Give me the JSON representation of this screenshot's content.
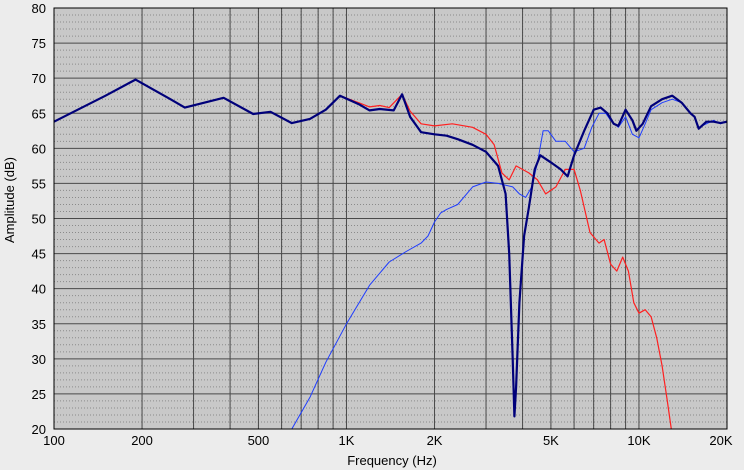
{
  "chart_data": {
    "type": "line",
    "title": "",
    "xlabel": "Frequency (Hz)",
    "ylabel": "Amplitude (dB)",
    "xscale": "log",
    "xlim": [
      100,
      20000
    ],
    "ylim": [
      20,
      80
    ],
    "grid": true,
    "legend": "none",
    "x_ticks": [
      {
        "value": 100,
        "label": "100"
      },
      {
        "value": 200,
        "label": "200"
      },
      {
        "value": 500,
        "label": "500"
      },
      {
        "value": 1000,
        "label": "1K"
      },
      {
        "value": 2000,
        "label": "2K"
      },
      {
        "value": 5000,
        "label": "5K"
      },
      {
        "value": 10000,
        "label": "10K"
      },
      {
        "value": 20000,
        "label": "20K"
      }
    ],
    "y_ticks": [
      20,
      25,
      30,
      35,
      40,
      45,
      50,
      55,
      60,
      65,
      70,
      75,
      80
    ],
    "colors": {
      "plot_background": "#c8c8c8",
      "major_grid": "#4a4a4a",
      "minor_grid": "#8a8a8a",
      "dark_blue": "#00007a",
      "blue": "#1e3cff",
      "red": "#ff2020"
    },
    "series": [
      {
        "color": "#ff2020",
        "width": 1.2,
        "points": [
          [
            100,
            63.8
          ],
          [
            150,
            67.5
          ],
          [
            190,
            69.8
          ],
          [
            250,
            67.0
          ],
          [
            280,
            65.8
          ],
          [
            380,
            67.2
          ],
          [
            480,
            64.9
          ],
          [
            550,
            65.2
          ],
          [
            650,
            63.6
          ],
          [
            750,
            64.2
          ],
          [
            850,
            65.5
          ],
          [
            950,
            67.5
          ],
          [
            1100,
            66.5
          ],
          [
            1200,
            65.9
          ],
          [
            1300,
            66.1
          ],
          [
            1400,
            65.8
          ],
          [
            1550,
            67.7
          ],
          [
            1650,
            65.3
          ],
          [
            1800,
            63.5
          ],
          [
            2000,
            63.2
          ],
          [
            2300,
            63.5
          ],
          [
            2700,
            63.0
          ],
          [
            3000,
            62.0
          ],
          [
            3200,
            60.5
          ],
          [
            3400,
            56.5
          ],
          [
            3600,
            55.5
          ],
          [
            3800,
            57.5
          ],
          [
            4200,
            56.5
          ],
          [
            4500,
            55.5
          ],
          [
            4800,
            53.5
          ],
          [
            5200,
            54.5
          ],
          [
            5600,
            57.0
          ],
          [
            6000,
            57.0
          ],
          [
            6300,
            54.0
          ],
          [
            6800,
            48.0
          ],
          [
            7300,
            46.5
          ],
          [
            7600,
            47.0
          ],
          [
            8000,
            43.5
          ],
          [
            8400,
            42.5
          ],
          [
            8800,
            44.5
          ],
          [
            9200,
            42.5
          ],
          [
            9600,
            38.0
          ],
          [
            10000,
            36.5
          ],
          [
            10500,
            37.0
          ],
          [
            11000,
            36.0
          ],
          [
            11500,
            33.0
          ],
          [
            12000,
            29.0
          ],
          [
            12500,
            24.0
          ],
          [
            12900,
            20.0
          ]
        ]
      },
      {
        "color": "#1e3cff",
        "width": 1.0,
        "points": [
          [
            650,
            20.0
          ],
          [
            750,
            24.5
          ],
          [
            850,
            29.5
          ],
          [
            1000,
            35.0
          ],
          [
            1200,
            40.5
          ],
          [
            1400,
            43.8
          ],
          [
            1600,
            45.3
          ],
          [
            1800,
            46.5
          ],
          [
            1900,
            47.5
          ],
          [
            2000,
            49.5
          ],
          [
            2100,
            50.8
          ],
          [
            2200,
            51.3
          ],
          [
            2400,
            52.0
          ],
          [
            2700,
            54.5
          ],
          [
            3000,
            55.2
          ],
          [
            3300,
            55.0
          ],
          [
            3700,
            54.5
          ],
          [
            3900,
            53.5
          ],
          [
            4100,
            53.0
          ],
          [
            4300,
            54.5
          ],
          [
            4500,
            58.0
          ],
          [
            4700,
            62.5
          ],
          [
            4900,
            62.5
          ],
          [
            5200,
            61.0
          ],
          [
            5600,
            61.0
          ],
          [
            6000,
            59.5
          ],
          [
            6500,
            60.0
          ],
          [
            6900,
            63.0
          ],
          [
            7300,
            65.0
          ],
          [
            7700,
            65.0
          ],
          [
            8000,
            64.0
          ],
          [
            8500,
            63.0
          ],
          [
            9000,
            64.5
          ],
          [
            9500,
            62.0
          ],
          [
            10000,
            61.5
          ],
          [
            10500,
            63.5
          ],
          [
            11000,
            65.5
          ],
          [
            12000,
            66.5
          ],
          [
            13000,
            67.0
          ],
          [
            14000,
            66.5
          ],
          [
            15000,
            65.0
          ],
          [
            15500,
            64.5
          ],
          [
            16000,
            63.0
          ],
          [
            17000,
            63.5
          ],
          [
            18000,
            64.0
          ],
          [
            19000,
            63.5
          ],
          [
            20000,
            63.8
          ]
        ]
      },
      {
        "color": "#00007a",
        "width": 2.2,
        "points": [
          [
            100,
            63.8
          ],
          [
            150,
            67.5
          ],
          [
            190,
            69.8
          ],
          [
            250,
            67.0
          ],
          [
            280,
            65.8
          ],
          [
            380,
            67.2
          ],
          [
            480,
            64.9
          ],
          [
            550,
            65.2
          ],
          [
            650,
            63.6
          ],
          [
            750,
            64.2
          ],
          [
            850,
            65.5
          ],
          [
            950,
            67.5
          ],
          [
            1100,
            66.3
          ],
          [
            1200,
            65.4
          ],
          [
            1300,
            65.6
          ],
          [
            1450,
            65.4
          ],
          [
            1550,
            67.7
          ],
          [
            1650,
            64.5
          ],
          [
            1800,
            62.3
          ],
          [
            2000,
            62.0
          ],
          [
            2200,
            61.8
          ],
          [
            2400,
            61.3
          ],
          [
            2700,
            60.5
          ],
          [
            3000,
            59.5
          ],
          [
            3300,
            57.5
          ],
          [
            3500,
            53.5
          ],
          [
            3600,
            45.0
          ],
          [
            3700,
            30.0
          ],
          [
            3750,
            21.8
          ],
          [
            3800,
            26.0
          ],
          [
            3900,
            38.0
          ],
          [
            4050,
            47.5
          ],
          [
            4200,
            51.5
          ],
          [
            4400,
            57.0
          ],
          [
            4600,
            59.0
          ],
          [
            5000,
            58.0
          ],
          [
            5400,
            57.0
          ],
          [
            5700,
            56.0
          ],
          [
            6000,
            59.0
          ],
          [
            6500,
            62.5
          ],
          [
            7000,
            65.5
          ],
          [
            7400,
            65.8
          ],
          [
            7800,
            65.0
          ],
          [
            8200,
            63.5
          ],
          [
            8500,
            63.2
          ],
          [
            9000,
            65.5
          ],
          [
            9500,
            64.0
          ],
          [
            9800,
            62.5
          ],
          [
            10300,
            63.5
          ],
          [
            11000,
            66.0
          ],
          [
            12000,
            67.0
          ],
          [
            13000,
            67.5
          ],
          [
            14000,
            66.5
          ],
          [
            15000,
            65.0
          ],
          [
            15500,
            64.5
          ],
          [
            16000,
            62.8
          ],
          [
            17000,
            63.8
          ],
          [
            18000,
            63.8
          ],
          [
            19000,
            63.6
          ],
          [
            20000,
            63.8
          ]
        ]
      }
    ]
  }
}
